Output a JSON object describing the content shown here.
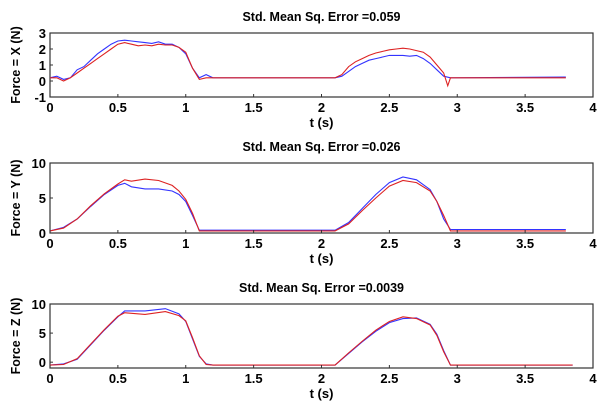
{
  "chart_data": [
    {
      "type": "line",
      "title": "Std. Mean Sq. Error =0.059",
      "xlabel": "t (s)",
      "ylabel": "Force = X (N)",
      "xlim": [
        0,
        4
      ],
      "ylim": [
        -1,
        3
      ],
      "xticks": [
        "0",
        "0.5",
        "1",
        "1.5",
        "2",
        "2.5",
        "3",
        "3.5",
        "4"
      ],
      "yticks": [
        "-1",
        "0",
        "1",
        "2",
        "3"
      ],
      "series": [
        {
          "name": "blue",
          "color": "#3333ff",
          "points": [
            [
              0,
              0.2
            ],
            [
              0.05,
              0.3
            ],
            [
              0.1,
              0.1
            ],
            [
              0.15,
              0.2
            ],
            [
              0.2,
              0.7
            ],
            [
              0.25,
              0.9
            ],
            [
              0.3,
              1.3
            ],
            [
              0.35,
              1.7
            ],
            [
              0.4,
              2.0
            ],
            [
              0.45,
              2.3
            ],
            [
              0.5,
              2.5
            ],
            [
              0.55,
              2.55
            ],
            [
              0.6,
              2.5
            ],
            [
              0.65,
              2.45
            ],
            [
              0.7,
              2.4
            ],
            [
              0.75,
              2.35
            ],
            [
              0.8,
              2.45
            ],
            [
              0.85,
              2.3
            ],
            [
              0.9,
              2.3
            ],
            [
              0.95,
              2.1
            ],
            [
              1.0,
              1.7
            ],
            [
              1.05,
              0.8
            ],
            [
              1.1,
              0.2
            ],
            [
              1.15,
              0.4
            ],
            [
              1.2,
              0.2
            ],
            [
              2.1,
              0.2
            ],
            [
              2.15,
              0.3
            ],
            [
              2.2,
              0.6
            ],
            [
              2.25,
              0.9
            ],
            [
              2.3,
              1.1
            ],
            [
              2.35,
              1.3
            ],
            [
              2.4,
              1.4
            ],
            [
              2.45,
              1.5
            ],
            [
              2.5,
              1.6
            ],
            [
              2.55,
              1.6
            ],
            [
              2.6,
              1.6
            ],
            [
              2.65,
              1.55
            ],
            [
              2.7,
              1.6
            ],
            [
              2.75,
              1.4
            ],
            [
              2.8,
              1.1
            ],
            [
              2.85,
              0.7
            ],
            [
              2.9,
              0.3
            ],
            [
              2.95,
              0.2
            ],
            [
              3.8,
              0.25
            ]
          ]
        },
        {
          "name": "red",
          "color": "#dd2222",
          "points": [
            [
              0,
              0.2
            ],
            [
              0.05,
              0.2
            ],
            [
              0.1,
              0.0
            ],
            [
              0.15,
              0.2
            ],
            [
              0.2,
              0.5
            ],
            [
              0.25,
              0.8
            ],
            [
              0.3,
              1.1
            ],
            [
              0.35,
              1.4
            ],
            [
              0.4,
              1.7
            ],
            [
              0.45,
              2.0
            ],
            [
              0.5,
              2.3
            ],
            [
              0.55,
              2.4
            ],
            [
              0.6,
              2.3
            ],
            [
              0.65,
              2.2
            ],
            [
              0.7,
              2.25
            ],
            [
              0.75,
              2.2
            ],
            [
              0.8,
              2.3
            ],
            [
              0.85,
              2.25
            ],
            [
              0.9,
              2.25
            ],
            [
              0.95,
              2.1
            ],
            [
              1.0,
              1.8
            ],
            [
              1.05,
              0.8
            ],
            [
              1.1,
              0.1
            ],
            [
              1.15,
              0.2
            ],
            [
              2.1,
              0.2
            ],
            [
              2.15,
              0.4
            ],
            [
              2.2,
              0.9
            ],
            [
              2.25,
              1.2
            ],
            [
              2.3,
              1.4
            ],
            [
              2.35,
              1.6
            ],
            [
              2.4,
              1.75
            ],
            [
              2.45,
              1.85
            ],
            [
              2.5,
              1.95
            ],
            [
              2.55,
              2.0
            ],
            [
              2.6,
              2.05
            ],
            [
              2.65,
              2.0
            ],
            [
              2.7,
              1.9
            ],
            [
              2.75,
              1.8
            ],
            [
              2.8,
              1.5
            ],
            [
              2.85,
              1.0
            ],
            [
              2.9,
              0.5
            ],
            [
              2.93,
              -0.3
            ],
            [
              2.95,
              0.2
            ],
            [
              3.8,
              0.2
            ]
          ]
        }
      ]
    },
    {
      "type": "line",
      "title": "Std. Mean Sq. Error =0.026",
      "xlabel": "t (s)",
      "ylabel": "Force = Y (N)",
      "xlim": [
        0,
        4
      ],
      "ylim": [
        0,
        10
      ],
      "xticks": [
        "0",
        "0.5",
        "1",
        "1.5",
        "2",
        "2.5",
        "3",
        "3.5",
        "4"
      ],
      "yticks": [
        "0",
        "5",
        "10"
      ],
      "series": [
        {
          "name": "blue",
          "color": "#3333ff",
          "points": [
            [
              0,
              0.3
            ],
            [
              0.1,
              0.8
            ],
            [
              0.2,
              2
            ],
            [
              0.3,
              3.8
            ],
            [
              0.4,
              5.5
            ],
            [
              0.5,
              6.8
            ],
            [
              0.55,
              7.1
            ],
            [
              0.6,
              6.6
            ],
            [
              0.7,
              6.3
            ],
            [
              0.8,
              6.3
            ],
            [
              0.9,
              6.0
            ],
            [
              0.95,
              5.5
            ],
            [
              1.0,
              4.5
            ],
            [
              1.05,
              2.5
            ],
            [
              1.1,
              0.4
            ],
            [
              2.1,
              0.4
            ],
            [
              2.2,
              1.5
            ],
            [
              2.3,
              3.5
            ],
            [
              2.4,
              5.5
            ],
            [
              2.5,
              7.2
            ],
            [
              2.6,
              8.0
            ],
            [
              2.7,
              7.6
            ],
            [
              2.8,
              6.2
            ],
            [
              2.85,
              4.5
            ],
            [
              2.9,
              2.0
            ],
            [
              2.95,
              0.5
            ],
            [
              3.8,
              0.5
            ]
          ]
        },
        {
          "name": "red",
          "color": "#dd2222",
          "points": [
            [
              0,
              0.3
            ],
            [
              0.1,
              0.7
            ],
            [
              0.2,
              2
            ],
            [
              0.3,
              3.9
            ],
            [
              0.4,
              5.6
            ],
            [
              0.5,
              7.0
            ],
            [
              0.55,
              7.6
            ],
            [
              0.6,
              7.4
            ],
            [
              0.7,
              7.7
            ],
            [
              0.8,
              7.5
            ],
            [
              0.9,
              6.8
            ],
            [
              0.95,
              6.0
            ],
            [
              1.0,
              4.8
            ],
            [
              1.05,
              2.8
            ],
            [
              1.1,
              0.3
            ],
            [
              2.1,
              0.3
            ],
            [
              2.2,
              1.3
            ],
            [
              2.3,
              3.2
            ],
            [
              2.4,
              5.0
            ],
            [
              2.5,
              6.7
            ],
            [
              2.6,
              7.5
            ],
            [
              2.7,
              7.2
            ],
            [
              2.8,
              6.0
            ],
            [
              2.85,
              4.5
            ],
            [
              2.9,
              2.5
            ],
            [
              2.95,
              0.3
            ],
            [
              3.8,
              0.3
            ]
          ]
        }
      ]
    },
    {
      "type": "line",
      "title": "Std. Mean Sq. Error =0.0039",
      "xlabel": "t (s)",
      "ylabel": "Force = Z (N)",
      "xlim": [
        0,
        4
      ],
      "ylim": [
        -1,
        10
      ],
      "xticks": [
        "0",
        "0.5",
        "1",
        "1.5",
        "2",
        "2.5",
        "3",
        "3.5",
        "4"
      ],
      "yticks": [
        "0",
        "5",
        "10"
      ],
      "series": [
        {
          "name": "blue",
          "color": "#3333ff",
          "points": [
            [
              0,
              -0.5
            ],
            [
              0.1,
              -0.3
            ],
            [
              0.2,
              0.5
            ],
            [
              0.3,
              3
            ],
            [
              0.4,
              5.5
            ],
            [
              0.5,
              7.8
            ],
            [
              0.55,
              8.8
            ],
            [
              0.7,
              8.8
            ],
            [
              0.85,
              9.2
            ],
            [
              0.95,
              8.3
            ],
            [
              1.0,
              7.0
            ],
            [
              1.05,
              4
            ],
            [
              1.1,
              1
            ],
            [
              1.15,
              -0.3
            ],
            [
              1.2,
              -0.5
            ],
            [
              2.1,
              -0.5
            ],
            [
              2.2,
              1.5
            ],
            [
              2.3,
              3.5
            ],
            [
              2.4,
              5.3
            ],
            [
              2.5,
              6.8
            ],
            [
              2.6,
              7.5
            ],
            [
              2.7,
              7.6
            ],
            [
              2.8,
              6.5
            ],
            [
              2.85,
              4.8
            ],
            [
              2.9,
              2
            ],
            [
              2.95,
              -0.5
            ],
            [
              3.85,
              -0.5
            ]
          ]
        },
        {
          "name": "red",
          "color": "#dd2222",
          "points": [
            [
              0,
              -0.5
            ],
            [
              0.1,
              -0.4
            ],
            [
              0.2,
              0.6
            ],
            [
              0.3,
              3.1
            ],
            [
              0.4,
              5.6
            ],
            [
              0.5,
              7.9
            ],
            [
              0.55,
              8.5
            ],
            [
              0.7,
              8.2
            ],
            [
              0.85,
              8.7
            ],
            [
              0.95,
              8.0
            ],
            [
              1.0,
              7.1
            ],
            [
              1.05,
              4.2
            ],
            [
              1.1,
              1.1
            ],
            [
              1.15,
              -0.4
            ],
            [
              1.2,
              -0.5
            ],
            [
              2.1,
              -0.5
            ],
            [
              2.2,
              1.6
            ],
            [
              2.3,
              3.6
            ],
            [
              2.4,
              5.5
            ],
            [
              2.5,
              7.0
            ],
            [
              2.6,
              7.8
            ],
            [
              2.7,
              7.5
            ],
            [
              2.8,
              6.4
            ],
            [
              2.85,
              4.6
            ],
            [
              2.9,
              1.8
            ],
            [
              2.95,
              -0.5
            ],
            [
              3.85,
              -0.5
            ]
          ]
        }
      ]
    }
  ]
}
